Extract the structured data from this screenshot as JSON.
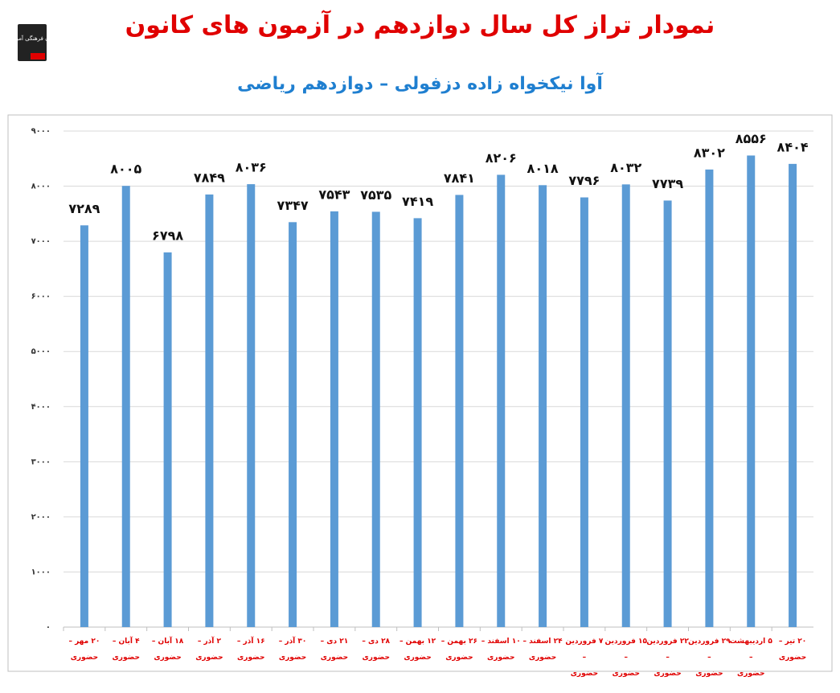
{
  "logo_text": "کانون فرهنگی آموزش",
  "chart_data": {
    "type": "bar",
    "title": "نمودار تراز کل سال دوازدهم در آزمون های کانون",
    "subtitle": "آوا نیکخواه زاده دزفولی – دوازدهم ریاضی",
    "categories": [
      "۲۰ مهر –\nحضوری",
      "۴ آبان –\nحضوری",
      "۱۸ آبان –\nحضوری",
      "۲ آذر –\nحضوری",
      "۱۶ آذر –\nحضوری",
      "۳۰ آذر –\nحضوری",
      "۲۱ دی –\nحضوری",
      "۲۸ دی –\nحضوری",
      "۱۲ بهمن –\nحضوری",
      "۲۶ بهمن –\nحضوری",
      "۱۰ اسفند –\nحضوری",
      "۲۴ اسفند –\nحضوری",
      "۷ فروردین –\nحضوری",
      "۱۵ فروردین –\nحضوری",
      "۲۲ فروردین –\nحضوری",
      "۲۹ فروردین –\nحضوری",
      "۵ اردیبهشت –\nحضوری",
      "۲۰ تیر –\nحضوری"
    ],
    "values": [
      7289,
      8005,
      6798,
      7849,
      8036,
      7347,
      7543,
      7535,
      7419,
      7841,
      8206,
      8018,
      7796,
      8032,
      7739,
      8302,
      8556,
      8404
    ],
    "value_labels": [
      "۷۲۸۹",
      "۸۰۰۵",
      "۶۷۹۸",
      "۷۸۴۹",
      "۸۰۳۶",
      "۷۳۴۷",
      "۷۵۴۳",
      "۷۵۳۵",
      "۷۴۱۹",
      "۷۸۴۱",
      "۸۲۰۶",
      "۸۰۱۸",
      "۷۷۹۶",
      "۸۰۳۲",
      "۷۷۳۹",
      "۸۳۰۲",
      "۸۵۵۶",
      "۸۴۰۴"
    ],
    "color": "#5b9bd5",
    "ylim": [
      0,
      9000
    ],
    "yticks": [
      {
        "value": 0,
        "label": "۰"
      },
      {
        "value": 1000,
        "label": "۱۰۰۰"
      },
      {
        "value": 2000,
        "label": "۲۰۰۰"
      },
      {
        "value": 3000,
        "label": "۳۰۰۰"
      },
      {
        "value": 4000,
        "label": "۴۰۰۰"
      },
      {
        "value": 5000,
        "label": "۵۰۰۰"
      },
      {
        "value": 6000,
        "label": "۶۰۰۰"
      },
      {
        "value": 7000,
        "label": "۷۰۰۰"
      },
      {
        "value": 8000,
        "label": "۸۰۰۰"
      },
      {
        "value": 9000,
        "label": "۹۰۰۰"
      }
    ],
    "grid": true
  }
}
